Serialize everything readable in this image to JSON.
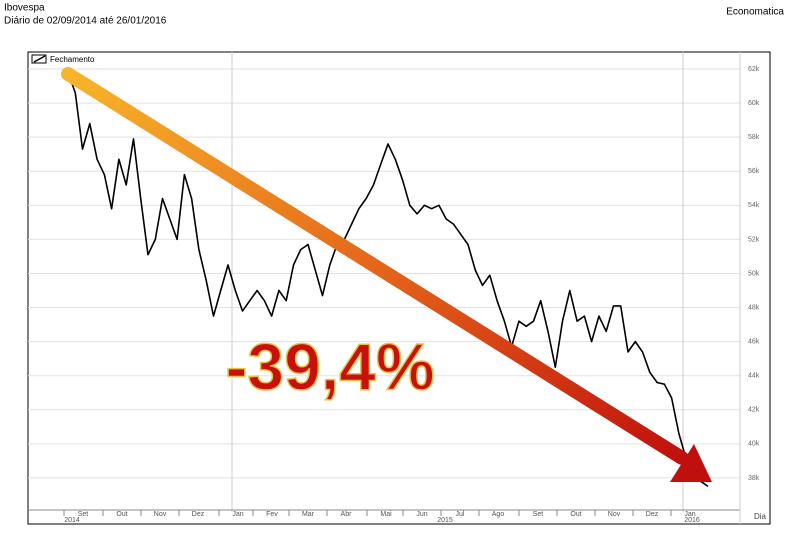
{
  "chart_data": {
    "type": "line",
    "title": "Ibovespa",
    "subtitle": "Diário de 02/09/2014 até 26/01/2016",
    "source": "Economatica",
    "annotation": "-39,4%",
    "x_axis_label": "Dia",
    "x_month_labels": [
      "Set",
      "Out",
      "Nov",
      "Dez",
      "Jan",
      "Fev",
      "Mar",
      "Abr",
      "Mai",
      "Jun",
      "Jul",
      "Ago",
      "Set",
      "Out",
      "Nov",
      "Dez",
      "Jan"
    ],
    "x_year_labels": [
      "2014",
      "2015",
      "2016"
    ],
    "ylim": [
      36000,
      63000
    ],
    "yticks": [
      {
        "value": 38000,
        "label": "38k"
      },
      {
        "value": 40000,
        "label": "40k"
      },
      {
        "value": 42000,
        "label": "42k"
      },
      {
        "value": 44000,
        "label": "44k"
      },
      {
        "value": 46000,
        "label": "46k"
      },
      {
        "value": 48000,
        "label": "48k"
      },
      {
        "value": 50000,
        "label": "50k"
      },
      {
        "value": 52000,
        "label": "52k"
      },
      {
        "value": 54000,
        "label": "54k"
      },
      {
        "value": 56000,
        "label": "56k"
      },
      {
        "value": 58000,
        "label": "58k"
      },
      {
        "value": 60000,
        "label": "60k"
      },
      {
        "value": 62000,
        "label": "62k"
      }
    ],
    "grid": true,
    "legend": "top-left",
    "series": [
      {
        "name": "Fechamento",
        "color": "#000000",
        "values": [
          61800,
          60600,
          57300,
          58800,
          56700,
          55800,
          53800,
          56700,
          55200,
          57900,
          54400,
          51100,
          52000,
          54400,
          53200,
          52000,
          55800,
          54400,
          51400,
          49600,
          47500,
          49000,
          50500,
          49000,
          47800,
          48400,
          49000,
          48400,
          47500,
          49000,
          48400,
          50500,
          51400,
          51700,
          50200,
          48700,
          50500,
          51700,
          52000,
          52900,
          53800,
          54400,
          55200,
          56400,
          57600,
          56700,
          55500,
          54000,
          53500,
          54000,
          53800,
          54000,
          53200,
          52900,
          52300,
          51700,
          50200,
          49300,
          49900,
          48400,
          47200,
          45700,
          47200,
          46900,
          47200,
          48400,
          46600,
          44500,
          47200,
          49000,
          47200,
          47500,
          46000,
          47500,
          46600,
          48100,
          48100,
          45400,
          46000,
          45400,
          44200,
          43600,
          43500,
          42700,
          40600,
          39100,
          38200,
          37800,
          37500
        ]
      }
    ]
  }
}
